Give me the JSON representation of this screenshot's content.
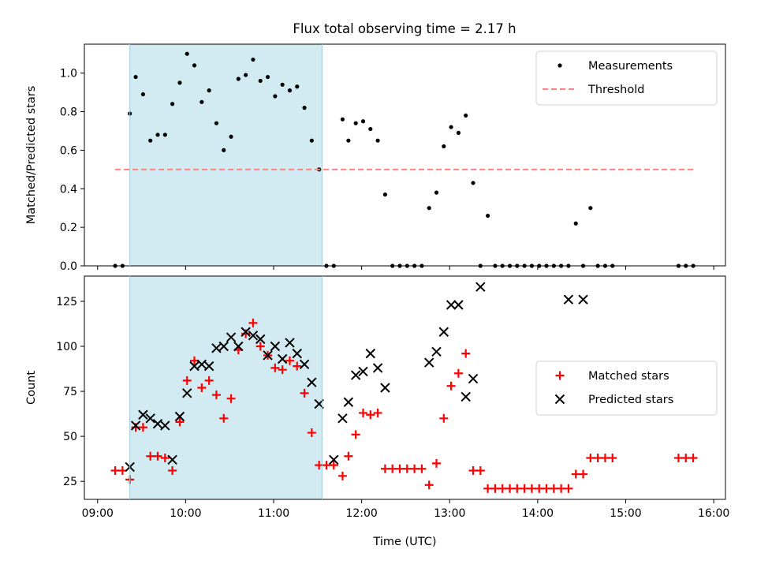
{
  "title": "Flux total observing time = 2.17 h",
  "chart_data": [
    {
      "type": "scatter",
      "ylabel": "Matched/Predicted stars",
      "ylim": [
        0,
        1.15
      ],
      "xlim": [
        "08:51",
        "16:08"
      ],
      "yticks": [
        "0.0",
        "0.2",
        "0.4",
        "0.6",
        "0.8",
        "1.0"
      ],
      "yticks_values": [
        0,
        0.2,
        0.4,
        0.6,
        0.8,
        1.0
      ],
      "shaded_interval": [
        "09:22",
        "11:33"
      ],
      "shade_color": "#add8e6",
      "legend": {
        "placement": "upper right",
        "entries": [
          "Measurements",
          "Threshold"
        ]
      },
      "series": [
        {
          "name": "Measurements",
          "marker": "dot",
          "color": "#000000",
          "x": [
            "09:12",
            "09:17",
            "09:22",
            "09:26",
            "09:31",
            "09:36",
            "09:41",
            "09:46",
            "09:51",
            "09:56",
            "10:01",
            "10:06",
            "10:11",
            "10:16",
            "10:21",
            "10:26",
            "10:31",
            "10:36",
            "10:41",
            "10:46",
            "10:51",
            "10:56",
            "11:01",
            "11:06",
            "11:11",
            "11:16",
            "11:21",
            "11:26",
            "11:31",
            "11:36",
            "11:41",
            "11:47",
            "11:51",
            "11:56",
            "12:01",
            "12:06",
            "12:11",
            "12:16",
            "12:21",
            "12:26",
            "12:31",
            "12:36",
            "12:41",
            "12:46",
            "12:51",
            "12:56",
            "13:01",
            "13:06",
            "13:11",
            "13:16",
            "13:21",
            "13:26",
            "13:31",
            "13:36",
            "13:41",
            "13:46",
            "13:51",
            "13:56",
            "14:01",
            "14:06",
            "14:11",
            "14:16",
            "14:21",
            "14:26",
            "14:31",
            "14:36",
            "14:41",
            "14:46",
            "14:51",
            "15:36",
            "15:41",
            "15:46"
          ],
          "y": [
            0,
            0,
            0.79,
            0.98,
            0.89,
            0.65,
            0.68,
            0.68,
            0.84,
            0.95,
            1.1,
            1.04,
            0.85,
            0.91,
            0.74,
            0.6,
            0.67,
            0.97,
            0.99,
            1.07,
            0.96,
            0.98,
            0.88,
            0.94,
            0.91,
            0.93,
            0.82,
            0.65,
            0.5,
            0,
            0,
            0.76,
            0.65,
            0.74,
            0.75,
            0.71,
            0.65,
            0.37,
            0,
            0,
            0,
            0,
            0,
            0.3,
            0.38,
            0.62,
            0.72,
            0.69,
            0.78,
            0.43,
            0,
            0.26,
            0,
            0,
            0,
            0,
            0,
            0,
            0,
            0,
            0,
            0,
            0,
            0.22,
            0,
            0.3,
            0,
            0,
            0,
            0,
            0,
            0
          ]
        },
        {
          "name": "Threshold",
          "style": "dashed",
          "color": "#ff8080",
          "x": [
            "09:12",
            "15:46"
          ],
          "y": [
            0.5,
            0.5
          ]
        }
      ]
    },
    {
      "type": "scatter",
      "xlabel": "Time (UTC)",
      "ylabel": "Count",
      "ylim": [
        15,
        139
      ],
      "xlim": [
        "08:51",
        "16:08"
      ],
      "xticks": [
        "09:00",
        "10:00",
        "11:00",
        "12:00",
        "13:00",
        "14:00",
        "15:00",
        "16:00"
      ],
      "yticks": [
        "25",
        "50",
        "75",
        "100",
        "125"
      ],
      "yticks_values": [
        25,
        50,
        75,
        100,
        125
      ],
      "shaded_interval": [
        "09:22",
        "11:33"
      ],
      "shade_color": "#add8e6",
      "legend": {
        "placement": "center right",
        "entries": [
          "Matched stars",
          "Predicted stars"
        ]
      },
      "series": [
        {
          "name": "Matched stars",
          "marker": "+",
          "color": "#ff0000",
          "x": [
            "09:12",
            "09:17",
            "09:22",
            "09:26",
            "09:31",
            "09:36",
            "09:41",
            "09:46",
            "09:51",
            "09:56",
            "10:01",
            "10:06",
            "10:11",
            "10:16",
            "10:21",
            "10:26",
            "10:31",
            "10:36",
            "10:41",
            "10:46",
            "10:51",
            "10:56",
            "11:01",
            "11:06",
            "11:11",
            "11:16",
            "11:21",
            "11:26",
            "11:31",
            "11:36",
            "11:41",
            "11:47",
            "11:51",
            "11:56",
            "12:01",
            "12:06",
            "12:11",
            "12:16",
            "12:21",
            "12:26",
            "12:31",
            "12:36",
            "12:41",
            "12:46",
            "12:51",
            "12:56",
            "13:01",
            "13:06",
            "13:11",
            "13:16",
            "13:21",
            "13:26",
            "13:31",
            "13:36",
            "13:41",
            "13:46",
            "13:51",
            "13:56",
            "14:01",
            "14:06",
            "14:11",
            "14:16",
            "14:21",
            "14:26",
            "14:31",
            "14:36",
            "14:41",
            "14:46",
            "14:51",
            "15:36",
            "15:41",
            "15:46"
          ],
          "y": [
            31,
            31,
            26,
            55,
            55,
            39,
            39,
            38,
            31,
            58,
            81,
            92,
            77,
            81,
            73,
            60,
            71,
            98,
            107,
            113,
            100,
            95,
            88,
            87,
            92,
            89,
            74,
            52,
            34,
            34,
            34,
            28,
            39,
            51,
            63,
            62,
            63,
            32,
            32,
            32,
            32,
            32,
            32,
            23,
            35,
            60,
            78,
            85,
            96,
            31,
            31,
            21,
            21,
            21,
            21,
            21,
            21,
            21,
            21,
            21,
            21,
            21,
            21,
            29,
            29,
            38,
            38,
            38,
            38,
            38,
            38,
            38
          ]
        },
        {
          "name": "Predicted stars",
          "marker": "x",
          "color": "#000000",
          "x": [
            "09:22",
            "09:26",
            "09:31",
            "09:36",
            "09:41",
            "09:46",
            "09:51",
            "09:56",
            "10:01",
            "10:06",
            "10:11",
            "10:16",
            "10:21",
            "10:26",
            "10:31",
            "10:36",
            "10:41",
            "10:46",
            "10:51",
            "10:56",
            "11:01",
            "11:06",
            "11:11",
            "11:16",
            "11:21",
            "11:26",
            "11:31",
            "11:41",
            "11:47",
            "11:51",
            "11:56",
            "12:01",
            "12:06",
            "12:11",
            "12:16",
            "12:46",
            "12:51",
            "12:56",
            "13:01",
            "13:06",
            "13:11",
            "13:16",
            "13:21",
            "14:21",
            "14:31"
          ],
          "y": [
            33,
            56,
            62,
            60,
            57,
            56,
            37,
            61,
            74,
            89,
            90,
            89,
            99,
            100,
            105,
            100,
            108,
            106,
            104,
            95,
            100,
            93,
            102,
            96,
            90,
            80,
            68,
            37,
            60,
            69,
            84,
            86,
            96,
            88,
            77,
            91,
            97,
            108,
            123,
            123,
            72,
            82,
            133,
            126,
            126
          ]
        }
      ]
    }
  ]
}
